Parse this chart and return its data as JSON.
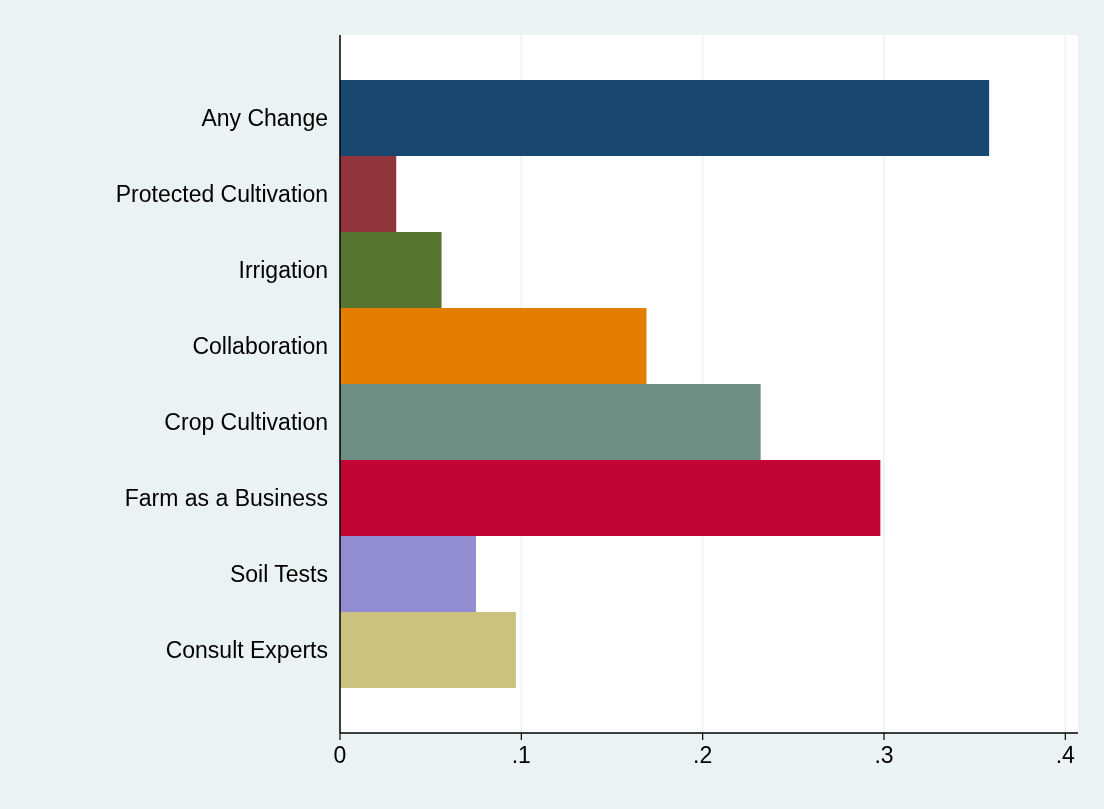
{
  "chart_data": {
    "type": "bar",
    "orientation": "horizontal",
    "categories": [
      "Any Change",
      "Protected Cultivation",
      "Irrigation",
      "Collaboration",
      "Crop Cultivation",
      "Farm as a Business",
      "Soil Tests",
      "Consult Experts"
    ],
    "values": [
      0.358,
      0.031,
      0.056,
      0.169,
      0.232,
      0.298,
      0.075,
      0.097
    ],
    "colors": [
      "#1a476f",
      "#90353b",
      "#55752f",
      "#e37e00",
      "#6e8e84",
      "#c10534",
      "#938dd2",
      "#cac27e"
    ],
    "xlim": [
      0,
      0.407
    ],
    "xticks": [
      0,
      {
        "value": 0.1,
        "label": ".1"
      },
      {
        "value": 0.2,
        "label": ".2"
      },
      {
        "value": 0.3,
        "label": ".3"
      },
      {
        "value": 0.4,
        "label": ".4"
      }
    ],
    "grid": "x"
  }
}
